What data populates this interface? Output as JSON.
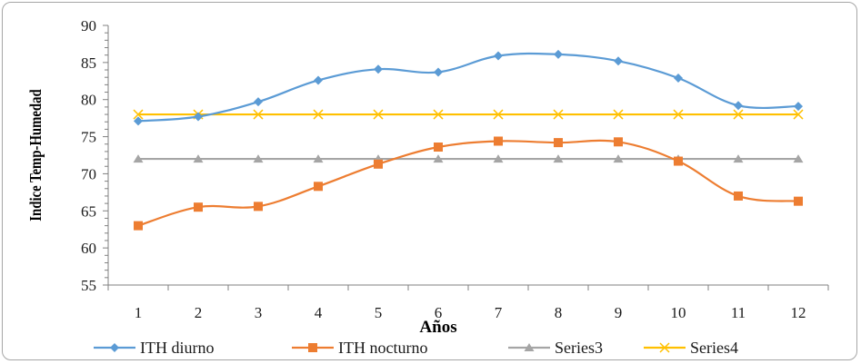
{
  "chart_data": {
    "type": "line",
    "title": "",
    "xlabel": "Años",
    "ylabel": "Indice Temp-Humedad",
    "categories": [
      "1",
      "2",
      "3",
      "4",
      "5",
      "6",
      "7",
      "8",
      "9",
      "10",
      "11",
      "12"
    ],
    "ylim": [
      55,
      90
    ],
    "yticks": [
      55,
      60,
      65,
      70,
      75,
      80,
      85,
      90
    ],
    "grid": false,
    "legend_position": "bottom",
    "series": [
      {
        "name": "ITH diurno",
        "color": "#5b9bd5",
        "marker": "diamond",
        "smooth": true,
        "values": [
          77.1,
          77.7,
          79.7,
          82.6,
          84.1,
          83.7,
          85.9,
          86.1,
          85.2,
          82.9,
          79.2,
          79.1
        ]
      },
      {
        "name": "ITH nocturno",
        "color": "#ed7d31",
        "marker": "square",
        "smooth": true,
        "values": [
          63.0,
          65.5,
          65.6,
          68.3,
          71.3,
          73.6,
          74.4,
          74.2,
          74.3,
          71.7,
          67.0,
          66.3
        ]
      },
      {
        "name": "Series3",
        "color": "#a5a5a5",
        "marker": "triangle",
        "smooth": false,
        "values": [
          72,
          72,
          72,
          72,
          72,
          72,
          72,
          72,
          72,
          72,
          72,
          72
        ]
      },
      {
        "name": "Series4",
        "color": "#ffc000",
        "marker": "x",
        "smooth": false,
        "values": [
          78,
          78,
          78,
          78,
          78,
          78,
          78,
          78,
          78,
          78,
          78,
          78
        ]
      }
    ]
  }
}
